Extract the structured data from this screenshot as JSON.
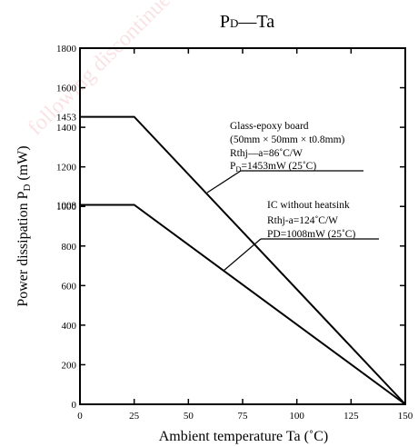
{
  "chart_data": {
    "type": "line",
    "title_main": "P",
    "title_sub": "D",
    "title_rest": "—Ta",
    "xlabel": "Ambient temperature  Ta (˚C)",
    "ylabel_main": "Power dissipation P",
    "ylabel_sub": "D",
    "ylabel_rest": " (mW)",
    "xlim": [
      0,
      150
    ],
    "ylim": [
      0,
      1800
    ],
    "x_ticks": [
      "0",
      "25",
      "50",
      "75",
      "100",
      "125",
      "150"
    ],
    "y_ticks": [
      "0",
      "200",
      "400",
      "600",
      "800",
      "1000",
      "1200",
      "1400",
      "1600",
      "1800"
    ],
    "y_special_ticks": [
      {
        "label": "1453",
        "value": 1453
      },
      {
        "label": "1008",
        "value": 1008
      }
    ],
    "series": [
      {
        "points": [
          [
            0,
            1453
          ],
          [
            25,
            1453
          ],
          [
            150,
            0
          ]
        ]
      },
      {
        "points": [
          [
            0,
            1008
          ],
          [
            25,
            1008
          ],
          [
            150,
            0
          ]
        ]
      }
    ],
    "annotations": [
      {
        "lines": [
          "Glass-epoxy board",
          "(50mm × 50mm × t0.8mm)",
          "Rthj—a=86˚C/W",
          "P_D=1453mW (25˚C)"
        ]
      },
      {
        "lines": [
          "IC without heatsink",
          "Rthj-a=124˚C/W",
          "PD=1008mW (25˚C)"
        ]
      }
    ],
    "grid": false,
    "watermark": "following discontinued. type, planed discontinued"
  }
}
